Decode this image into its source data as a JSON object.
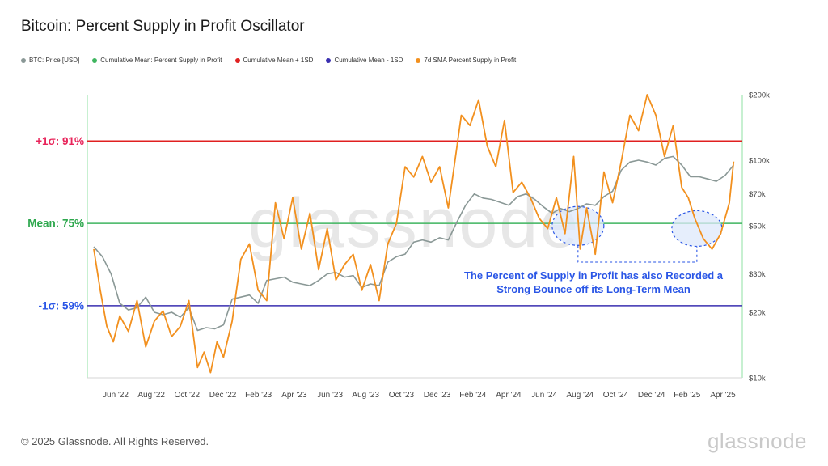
{
  "title": "Bitcoin: Percent Supply in Profit Oscillator",
  "legend": [
    {
      "label": "BTC: Price [USD]",
      "color": "#8a9896"
    },
    {
      "label": "Cumulative Mean: Percent Supply in Profit",
      "color": "#3fb55f"
    },
    {
      "label": "Cumulative Mean + 1SD",
      "color": "#e02020"
    },
    {
      "label": "Cumulative Mean - 1SD",
      "color": "#3a2fb0"
    },
    {
      "label": "7d SMA Percent Supply in Profit",
      "color": "#f2901e"
    }
  ],
  "footer": "© 2025 Glassnode. All Rights Reserved.",
  "brand": "glassnode",
  "chart_data": {
    "type": "line",
    "watermark": "glassnode",
    "x_ticks": [
      "Jun '22",
      "Aug '22",
      "Oct '22",
      "Dec '22",
      "Feb '23",
      "Apr '23",
      "Jun '23",
      "Aug '23",
      "Oct '23",
      "Dec '23",
      "Feb '24",
      "Apr '24",
      "Jun '24",
      "Aug '24",
      "Oct '24",
      "Dec '24",
      "Feb '25",
      "Apr '25"
    ],
    "y_right_ticks": [
      "$200k",
      "$100k",
      "$70k",
      "$50k",
      "$30k",
      "$20k",
      "$10k"
    ],
    "y_right_tick_values": [
      200000,
      100000,
      70000,
      50000,
      30000,
      20000,
      10000
    ],
    "y_right_scale": "log",
    "y_right_range": [
      10000,
      200000
    ],
    "percent_axis_range": [
      45,
      100
    ],
    "bands": [
      {
        "label": "+1σ: 91%",
        "value": 91,
        "color": "#e02020",
        "label_color": "#e8245a"
      },
      {
        "label": "Mean: 75%",
        "value": 75,
        "color": "#3fb55f",
        "label_color": "#2ea84e"
      },
      {
        "label": "-1σ: 59%",
        "value": 59,
        "color": "#3a2fb0",
        "label_color": "#2a56e6"
      }
    ],
    "annotation": {
      "lines": [
        "The Percent of Supply in Profit has also Recorded a",
        "Strong Bounce off its Long-Term Mean"
      ],
      "color": "#2a56e6"
    },
    "series": [
      {
        "name": "7d SMA Percent Supply in Profit",
        "color": "#f2901e",
        "axis": "percent",
        "x": [
          2022.36,
          2022.39,
          2022.42,
          2022.45,
          2022.48,
          2022.52,
          2022.56,
          2022.6,
          2022.64,
          2022.68,
          2022.72,
          2022.76,
          2022.8,
          2022.84,
          2022.87,
          2022.9,
          2022.93,
          2022.96,
          2023.0,
          2023.04,
          2023.08,
          2023.12,
          2023.16,
          2023.2,
          2023.24,
          2023.28,
          2023.32,
          2023.36,
          2023.4,
          2023.44,
          2023.48,
          2023.52,
          2023.56,
          2023.6,
          2023.64,
          2023.68,
          2023.72,
          2023.76,
          2023.8,
          2023.84,
          2023.88,
          2023.92,
          2023.96,
          2024.0,
          2024.03,
          2024.06,
          2024.1,
          2024.14,
          2024.18,
          2024.22,
          2024.26,
          2024.3,
          2024.34,
          2024.38,
          2024.42,
          2024.46,
          2024.5,
          2024.54,
          2024.58,
          2024.61,
          2024.64,
          2024.68,
          2024.72,
          2024.76,
          2024.8,
          2024.84,
          2024.88,
          2024.92,
          2024.96,
          2025.0,
          2025.04,
          2025.08,
          2025.11,
          2025.14,
          2025.18,
          2025.22,
          2025.26,
          2025.3,
          2025.32
        ],
        "values": [
          70,
          62,
          55,
          52,
          57,
          54,
          60,
          51,
          56,
          58,
          53,
          55,
          60,
          47,
          50,
          46,
          52,
          49,
          56,
          68,
          71,
          62,
          60,
          79,
          72,
          80,
          70,
          77,
          66,
          74,
          64,
          67,
          69,
          62,
          67,
          60,
          71,
          75,
          86,
          84,
          88,
          83,
          86,
          78,
          87,
          96,
          94,
          99,
          90,
          86,
          95,
          81,
          83,
          80,
          76,
          74,
          80,
          73,
          88,
          70,
          78,
          69,
          85,
          79,
          87,
          96,
          93,
          100,
          96,
          88,
          94,
          82,
          80,
          76,
          72,
          70,
          73,
          79,
          87
        ]
      },
      {
        "name": "BTC: Price [USD]",
        "color": "#8a9896",
        "axis": "price",
        "x": [
          2022.36,
          2022.4,
          2022.44,
          2022.48,
          2022.52,
          2022.56,
          2022.6,
          2022.64,
          2022.68,
          2022.72,
          2022.76,
          2022.8,
          2022.84,
          2022.88,
          2022.92,
          2022.96,
          2023.0,
          2023.04,
          2023.08,
          2023.12,
          2023.16,
          2023.2,
          2023.24,
          2023.28,
          2023.32,
          2023.36,
          2023.4,
          2023.44,
          2023.48,
          2023.52,
          2023.56,
          2023.6,
          2023.64,
          2023.68,
          2023.72,
          2023.76,
          2023.8,
          2023.84,
          2023.88,
          2023.92,
          2023.96,
          2024.0,
          2024.04,
          2024.08,
          2024.12,
          2024.16,
          2024.2,
          2024.24,
          2024.28,
          2024.32,
          2024.36,
          2024.4,
          2024.44,
          2024.48,
          2024.52,
          2024.56,
          2024.6,
          2024.64,
          2024.68,
          2024.72,
          2024.76,
          2024.8,
          2024.84,
          2024.88,
          2024.92,
          2024.96,
          2025.0,
          2025.04,
          2025.08,
          2025.12,
          2025.16,
          2025.2,
          2025.24,
          2025.28,
          2025.32
        ],
        "values": [
          40000,
          36000,
          30000,
          22000,
          20500,
          21000,
          23500,
          20000,
          19500,
          20000,
          19000,
          21000,
          16500,
          17000,
          16800,
          17500,
          23000,
          23500,
          24000,
          22000,
          28000,
          28500,
          29000,
          27500,
          27000,
          26500,
          28000,
          30000,
          30500,
          29000,
          29500,
          26000,
          27000,
          26500,
          34000,
          36000,
          37000,
          42000,
          43000,
          42000,
          44000,
          43000,
          52000,
          62000,
          70000,
          67000,
          66000,
          64000,
          62000,
          68000,
          70000,
          66000,
          61000,
          57000,
          60000,
          58000,
          60000,
          63000,
          62000,
          68000,
          72000,
          90000,
          98000,
          100000,
          98000,
          95000,
          102000,
          104000,
          95000,
          84000,
          84000,
          82000,
          80000,
          85000,
          95000
        ]
      }
    ]
  }
}
